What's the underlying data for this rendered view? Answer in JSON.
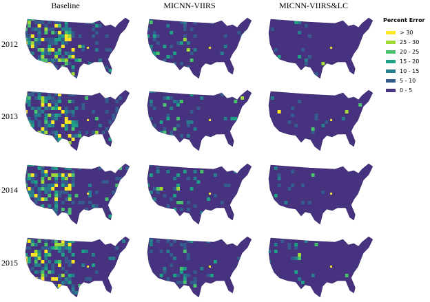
{
  "columns": [
    "Baseline",
    "MICNN-VIIRS",
    "MICNN-VIIRS&LC"
  ],
  "rows": [
    "2012",
    "2013",
    "2014",
    "2015"
  ],
  "legend": {
    "title": "Percent Error",
    "items": [
      {
        "label": "> 30",
        "color": "#fde725"
      },
      {
        "label": "25 - 30",
        "color": "#a0da39"
      },
      {
        "label": "20 - 25",
        "color": "#4ac16d"
      },
      {
        "label": "15 - 20",
        "color": "#1fa187"
      },
      {
        "label": "10 - 15",
        "color": "#277f8e"
      },
      {
        "label": "5 - 10",
        "color": "#365c8d"
      },
      {
        "label": "0 - 5",
        "color": "#46327e"
      }
    ]
  }
}
